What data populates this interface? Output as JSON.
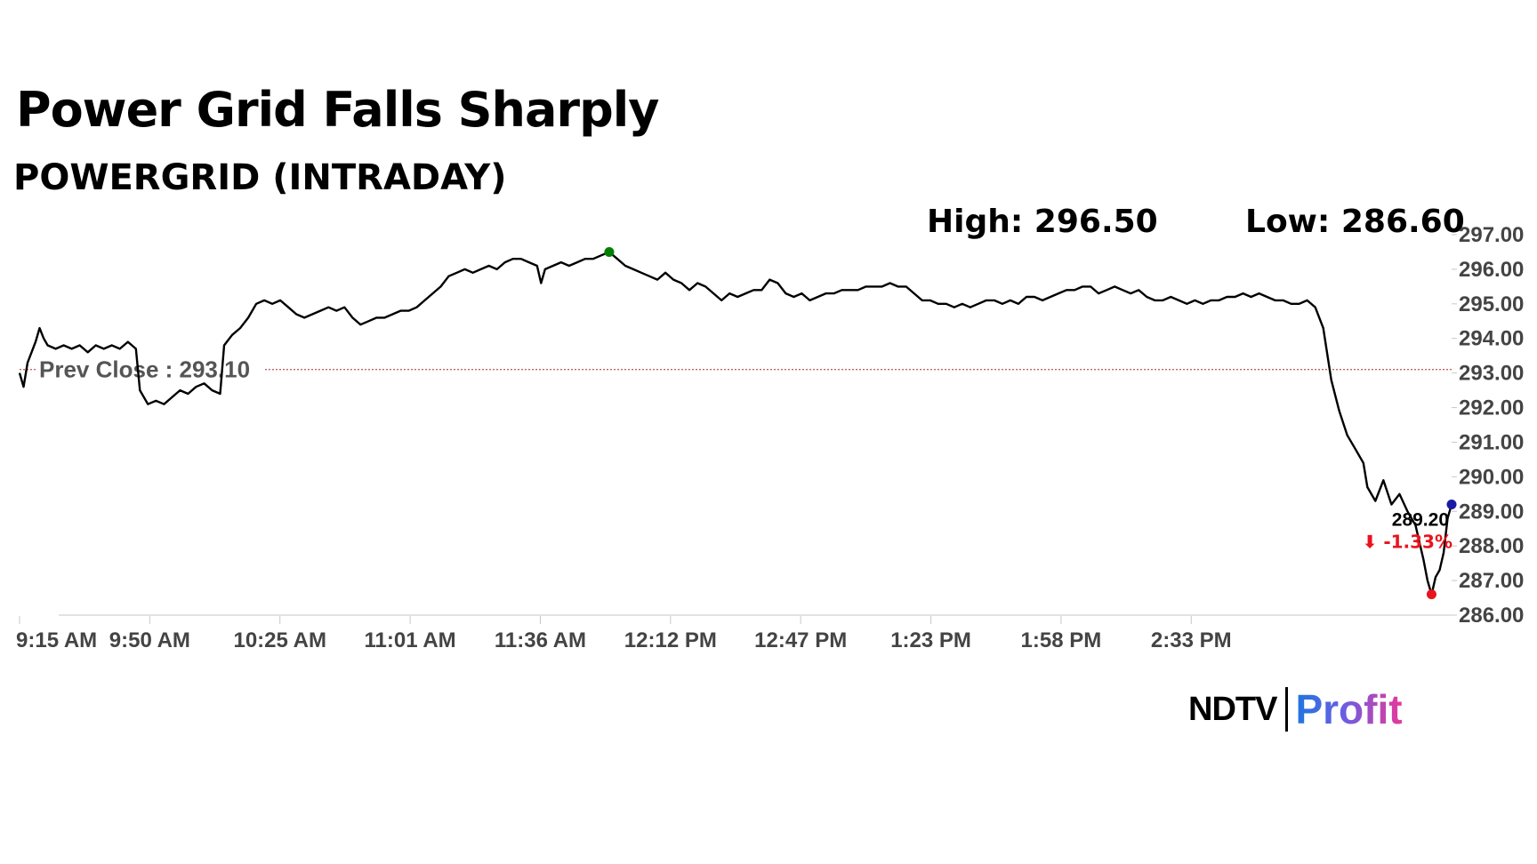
{
  "title": "Power Grid Falls Sharply",
  "subtitle": "POWERGRID (INTRADAY)",
  "stats": {
    "high": "High: 296.50",
    "low": "Low: 286.60"
  },
  "logo": {
    "ndtv": "NDTV",
    "profit": "Profit"
  },
  "colors": {
    "line": "#000000",
    "prev_close": "#a52a2a",
    "high_marker": "#008000",
    "low_marker": "#e8141e",
    "last_marker": "#1a1aa6",
    "change_negative": "#e8141e"
  },
  "chart_data": {
    "type": "line",
    "x_ticks": [
      "9:15 AM",
      "9:50 AM",
      "10:25 AM",
      "11:01 AM",
      "11:36 AM",
      "12:12 PM",
      "12:47 PM",
      "1:23 PM",
      "1:58 PM",
      "2:33 PM"
    ],
    "y_ticks": [
      "297.00",
      "296.00",
      "295.00",
      "294.00",
      "293.00",
      "292.00",
      "291.00",
      "290.00",
      "289.00",
      "288.00",
      "287.00",
      "286.00"
    ],
    "ylim": [
      286,
      297
    ],
    "x_range": [
      "9:15",
      "15:12"
    ],
    "grid": false,
    "prev_close": {
      "value": 293.1,
      "label": "Prev Close : 293.10"
    },
    "high": {
      "time": "11:42",
      "value": 296.5
    },
    "low": {
      "time": "15:07",
      "value": 286.6
    },
    "last": {
      "time": "15:12",
      "value": 289.2,
      "label": "289.20",
      "change_label": "⬇ -1.33%"
    },
    "series": [
      {
        "points": [
          [
            "9:15",
            293.0
          ],
          [
            "9:16",
            292.6
          ],
          [
            "9:17",
            293.3
          ],
          [
            "9:18",
            293.6
          ],
          [
            "9:19",
            293.9
          ],
          [
            "9:20",
            294.3
          ],
          [
            "9:21",
            294.0
          ],
          [
            "9:22",
            293.8
          ],
          [
            "9:24",
            293.7
          ],
          [
            "9:26",
            293.8
          ],
          [
            "9:28",
            293.7
          ],
          [
            "9:30",
            293.8
          ],
          [
            "9:32",
            293.6
          ],
          [
            "9:34",
            293.8
          ],
          [
            "9:36",
            293.7
          ],
          [
            "9:38",
            293.8
          ],
          [
            "9:40",
            293.7
          ],
          [
            "9:42",
            293.9
          ],
          [
            "9:44",
            293.7
          ],
          [
            "9:45",
            292.5
          ],
          [
            "9:47",
            292.1
          ],
          [
            "9:49",
            292.2
          ],
          [
            "9:51",
            292.1
          ],
          [
            "9:53",
            292.3
          ],
          [
            "9:55",
            292.5
          ],
          [
            "9:57",
            292.4
          ],
          [
            "9:59",
            292.6
          ],
          [
            "10:01",
            292.7
          ],
          [
            "10:03",
            292.5
          ],
          [
            "10:05",
            292.4
          ],
          [
            "10:06",
            293.8
          ],
          [
            "10:08",
            294.1
          ],
          [
            "10:10",
            294.3
          ],
          [
            "10:12",
            294.6
          ],
          [
            "10:14",
            295.0
          ],
          [
            "10:16",
            295.1
          ],
          [
            "10:18",
            295.0
          ],
          [
            "10:20",
            295.1
          ],
          [
            "10:22",
            294.9
          ],
          [
            "10:24",
            294.7
          ],
          [
            "10:26",
            294.6
          ],
          [
            "10:28",
            294.7
          ],
          [
            "10:30",
            294.8
          ],
          [
            "10:32",
            294.9
          ],
          [
            "10:34",
            294.8
          ],
          [
            "10:36",
            294.9
          ],
          [
            "10:38",
            294.6
          ],
          [
            "10:40",
            294.4
          ],
          [
            "10:42",
            294.5
          ],
          [
            "10:44",
            294.6
          ],
          [
            "10:46",
            294.6
          ],
          [
            "10:48",
            294.7
          ],
          [
            "10:50",
            294.8
          ],
          [
            "10:52",
            294.8
          ],
          [
            "10:54",
            294.9
          ],
          [
            "10:56",
            295.1
          ],
          [
            "10:58",
            295.3
          ],
          [
            "11:00",
            295.5
          ],
          [
            "11:02",
            295.8
          ],
          [
            "11:04",
            295.9
          ],
          [
            "11:06",
            296.0
          ],
          [
            "11:08",
            295.9
          ],
          [
            "11:10",
            296.0
          ],
          [
            "11:12",
            296.1
          ],
          [
            "11:14",
            296.0
          ],
          [
            "11:16",
            296.2
          ],
          [
            "11:18",
            296.3
          ],
          [
            "11:20",
            296.3
          ],
          [
            "11:22",
            296.2
          ],
          [
            "11:24",
            296.1
          ],
          [
            "11:25",
            295.6
          ],
          [
            "11:26",
            296.0
          ],
          [
            "11:28",
            296.1
          ],
          [
            "11:30",
            296.2
          ],
          [
            "11:32",
            296.1
          ],
          [
            "11:34",
            296.2
          ],
          [
            "11:36",
            296.3
          ],
          [
            "11:38",
            296.3
          ],
          [
            "11:40",
            296.4
          ],
          [
            "11:42",
            296.5
          ],
          [
            "11:44",
            296.3
          ],
          [
            "11:46",
            296.1
          ],
          [
            "11:48",
            296.0
          ],
          [
            "11:50",
            295.9
          ],
          [
            "11:52",
            295.8
          ],
          [
            "11:54",
            295.7
          ],
          [
            "11:56",
            295.9
          ],
          [
            "11:58",
            295.7
          ],
          [
            "12:00",
            295.6
          ],
          [
            "12:02",
            295.4
          ],
          [
            "12:04",
            295.6
          ],
          [
            "12:06",
            295.5
          ],
          [
            "12:08",
            295.3
          ],
          [
            "12:10",
            295.1
          ],
          [
            "12:12",
            295.3
          ],
          [
            "12:14",
            295.2
          ],
          [
            "12:16",
            295.3
          ],
          [
            "12:18",
            295.4
          ],
          [
            "12:20",
            295.4
          ],
          [
            "12:22",
            295.7
          ],
          [
            "12:24",
            295.6
          ],
          [
            "12:26",
            295.3
          ],
          [
            "12:28",
            295.2
          ],
          [
            "12:30",
            295.3
          ],
          [
            "12:32",
            295.1
          ],
          [
            "12:34",
            295.2
          ],
          [
            "12:36",
            295.3
          ],
          [
            "12:38",
            295.3
          ],
          [
            "12:40",
            295.4
          ],
          [
            "12:42",
            295.4
          ],
          [
            "12:44",
            295.4
          ],
          [
            "12:46",
            295.5
          ],
          [
            "12:48",
            295.5
          ],
          [
            "12:50",
            295.5
          ],
          [
            "12:52",
            295.6
          ],
          [
            "12:54",
            295.5
          ],
          [
            "12:56",
            295.5
          ],
          [
            "12:58",
            295.3
          ],
          [
            "13:00",
            295.1
          ],
          [
            "13:02",
            295.1
          ],
          [
            "13:04",
            295.0
          ],
          [
            "13:06",
            295.0
          ],
          [
            "13:08",
            294.9
          ],
          [
            "13:10",
            295.0
          ],
          [
            "13:12",
            294.9
          ],
          [
            "13:14",
            295.0
          ],
          [
            "13:16",
            295.1
          ],
          [
            "13:18",
            295.1
          ],
          [
            "13:20",
            295.0
          ],
          [
            "13:22",
            295.1
          ],
          [
            "13:24",
            295.0
          ],
          [
            "13:26",
            295.2
          ],
          [
            "13:28",
            295.2
          ],
          [
            "13:30",
            295.1
          ],
          [
            "13:32",
            295.2
          ],
          [
            "13:34",
            295.3
          ],
          [
            "13:36",
            295.4
          ],
          [
            "13:38",
            295.4
          ],
          [
            "13:40",
            295.5
          ],
          [
            "13:42",
            295.5
          ],
          [
            "13:44",
            295.3
          ],
          [
            "13:46",
            295.4
          ],
          [
            "13:48",
            295.5
          ],
          [
            "13:50",
            295.4
          ],
          [
            "13:52",
            295.3
          ],
          [
            "13:54",
            295.4
          ],
          [
            "13:56",
            295.2
          ],
          [
            "13:58",
            295.1
          ],
          [
            "14:00",
            295.1
          ],
          [
            "14:02",
            295.2
          ],
          [
            "14:04",
            295.1
          ],
          [
            "14:06",
            295.0
          ],
          [
            "14:08",
            295.1
          ],
          [
            "14:10",
            295.0
          ],
          [
            "14:12",
            295.1
          ],
          [
            "14:14",
            295.1
          ],
          [
            "14:16",
            295.2
          ],
          [
            "14:18",
            295.2
          ],
          [
            "14:20",
            295.3
          ],
          [
            "14:22",
            295.2
          ],
          [
            "14:24",
            295.3
          ],
          [
            "14:26",
            295.2
          ],
          [
            "14:28",
            295.1
          ],
          [
            "14:30",
            295.1
          ],
          [
            "14:32",
            295.0
          ],
          [
            "14:34",
            295.0
          ],
          [
            "14:36",
            295.1
          ],
          [
            "14:38",
            294.9
          ],
          [
            "14:40",
            294.3
          ],
          [
            "14:42",
            292.8
          ],
          [
            "14:44",
            291.9
          ],
          [
            "14:46",
            291.2
          ],
          [
            "14:48",
            290.8
          ],
          [
            "14:50",
            290.4
          ],
          [
            "14:51",
            289.7
          ],
          [
            "14:53",
            289.3
          ],
          [
            "14:55",
            289.9
          ],
          [
            "14:57",
            289.2
          ],
          [
            "14:59",
            289.5
          ],
          [
            "15:01",
            289.0
          ],
          [
            "15:03",
            288.6
          ],
          [
            "15:05",
            287.6
          ],
          [
            "15:06",
            287.0
          ],
          [
            "15:07",
            286.6
          ],
          [
            "15:08",
            287.1
          ],
          [
            "15:09",
            287.3
          ],
          [
            "15:10",
            287.8
          ],
          [
            "15:11",
            288.8
          ],
          [
            "15:12",
            289.2
          ]
        ]
      }
    ]
  }
}
